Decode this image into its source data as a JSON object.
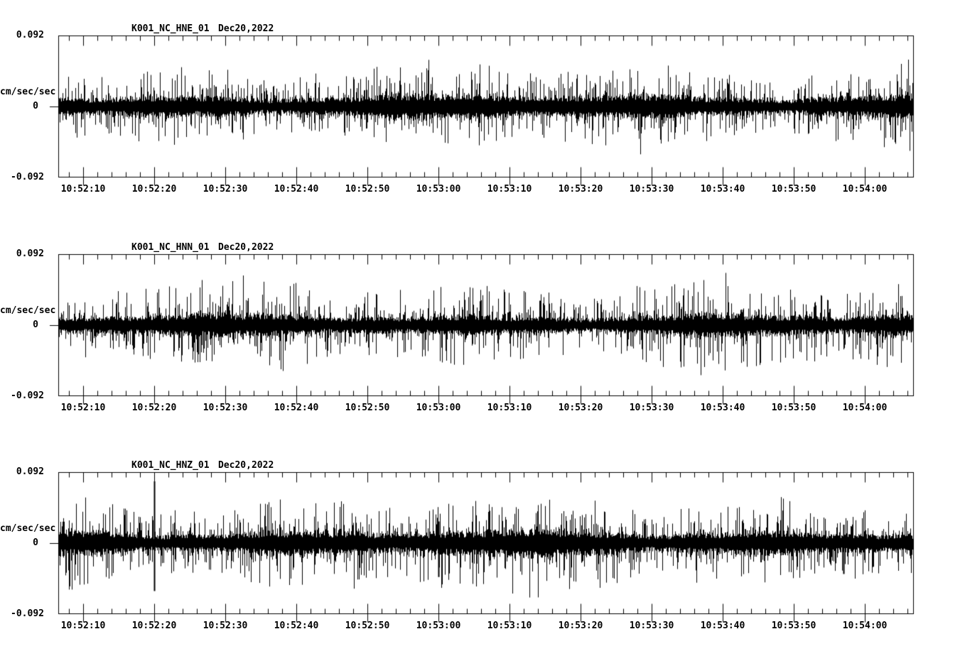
{
  "figure": {
    "background": "#ffffff",
    "trace_color": "#000000",
    "description": "Three-channel strong-motion seismogram record, station K001 network NC, channels HNE/HNN/HNZ"
  },
  "chart_data": [
    {
      "type": "line",
      "panel": "top",
      "title": "K001_NC_HNE_01",
      "date": "Dec20,2022",
      "ylabel": "cm/sec/sec",
      "ylim": [
        -0.092,
        0.092
      ],
      "y_tick_labels": [
        "0.092",
        "0",
        "-0.092"
      ],
      "x_tick_labels": [
        "10:52:10",
        "10:52:20",
        "10:52:30",
        "10:52:40",
        "10:52:50",
        "10:53:00",
        "10:53:10",
        "10:53:20",
        "10:53:30",
        "10:53:40",
        "10:53:50",
        "10:54:00"
      ],
      "x_axis": {
        "start": "10:52:06.5",
        "end": "10:54:07",
        "duration_sec": 120.4,
        "first_tick_offset_sec": 3.5,
        "major_interval_sec": 10,
        "minor_interval_sec": 2
      },
      "layout": {
        "grid": false,
        "frame": true,
        "legend": "none"
      },
      "series": {
        "name": "NC.K001.HNE",
        "kind": "seismic-noise",
        "seed": 11,
        "noise_core": 0.012,
        "noise_peak": 0.031,
        "features": []
      }
    },
    {
      "type": "line",
      "panel": "middle",
      "title": "K001_NC_HNN_01",
      "date": "Dec20,2022",
      "ylabel": "cm/sec/sec",
      "ylim": [
        -0.092,
        0.092
      ],
      "y_tick_labels": [
        "0.092",
        "0",
        "-0.092"
      ],
      "x_tick_labels": [
        "10:52:10",
        "10:52:20",
        "10:52:30",
        "10:52:40",
        "10:52:50",
        "10:53:00",
        "10:53:10",
        "10:53:20",
        "10:53:30",
        "10:53:40",
        "10:53:50",
        "10:54:00"
      ],
      "x_axis": {
        "start": "10:52:06.5",
        "end": "10:54:07",
        "duration_sec": 120.4,
        "first_tick_offset_sec": 3.5,
        "major_interval_sec": 10,
        "minor_interval_sec": 2
      },
      "layout": {
        "grid": false,
        "frame": true,
        "legend": "none"
      },
      "series": {
        "name": "NC.K001.HNN",
        "kind": "seismic-noise",
        "seed": 22,
        "noise_core": 0.011,
        "noise_peak": 0.033,
        "features": []
      }
    },
    {
      "type": "line",
      "panel": "bottom",
      "title": "K001_NC_HNZ_01",
      "date": "Dec20,2022",
      "ylabel": "cm/sec/sec",
      "ylim": [
        -0.092,
        0.092
      ],
      "y_tick_labels": [
        "0.092",
        "0",
        "-0.092"
      ],
      "x_tick_labels": [
        "10:52:10",
        "10:52:20",
        "10:52:30",
        "10:52:40",
        "10:52:50",
        "10:53:00",
        "10:53:10",
        "10:53:20",
        "10:53:30",
        "10:53:40",
        "10:53:50",
        "10:54:00"
      ],
      "x_axis": {
        "start": "10:52:06.5",
        "end": "10:54:07",
        "duration_sec": 120.4,
        "first_tick_offset_sec": 3.5,
        "major_interval_sec": 10,
        "minor_interval_sec": 2
      },
      "layout": {
        "grid": false,
        "frame": true,
        "legend": "none"
      },
      "series": {
        "name": "NC.K001.HNZ",
        "kind": "seismic-noise",
        "seed": 33,
        "noise_core": 0.013,
        "noise_peak": 0.034,
        "features": [
          {
            "time": "10:52:20",
            "max": 0.08,
            "min": -0.062
          },
          {
            "time": "10:53:00",
            "max": 0.028,
            "min": -0.044
          },
          {
            "time": "10:53:57",
            "max": 0.024,
            "min": -0.04
          }
        ]
      }
    }
  ]
}
